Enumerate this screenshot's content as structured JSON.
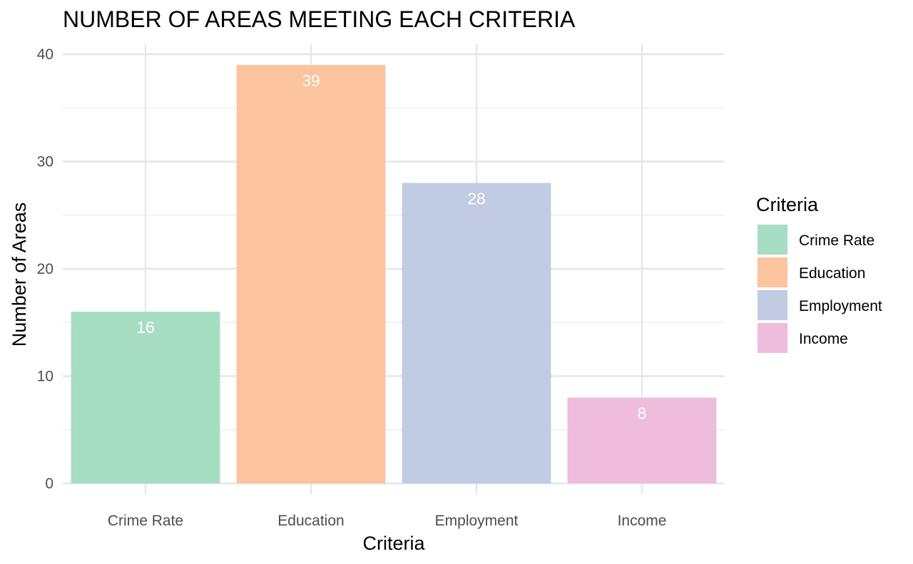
{
  "chart_data": {
    "type": "bar",
    "title": "NUMBER OF AREAS MEETING EACH CRITERIA",
    "xlabel": "Criteria",
    "ylabel": "Number of Areas",
    "categories": [
      "Crime Rate",
      "Education",
      "Employment",
      "Income"
    ],
    "values": [
      16,
      39,
      28,
      8
    ],
    "data_labels": [
      "16",
      "39",
      "28",
      "8"
    ],
    "colors": [
      "#A6DDC3",
      "#FBC39E",
      "#C1CBE2",
      "#EEBCDC"
    ],
    "ylim": [
      0,
      41
    ],
    "yticks": [
      0,
      10,
      20,
      30,
      40
    ],
    "ytick_labels": [
      "0",
      "10",
      "20",
      "30",
      "40"
    ],
    "grid": true,
    "legend": {
      "title": "Criteria",
      "position": "right",
      "entries": [
        "Crime Rate",
        "Education",
        "Employment",
        "Income"
      ]
    }
  }
}
